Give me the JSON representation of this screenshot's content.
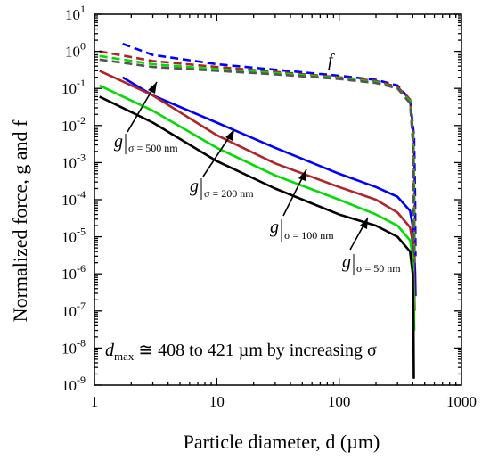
{
  "chart_data": {
    "type": "line",
    "xlabel": "Particle diameter, d (µm)",
    "ylabel": "Normalized force, g and f",
    "xscale": "log",
    "yscale": "log",
    "xlim": [
      1,
      1000
    ],
    "ylim": [
      1e-09,
      10
    ],
    "x_ticks": [
      "1",
      "10",
      "100",
      "1000"
    ],
    "y_ticks": [
      {
        "base": "10",
        "exp": "-9",
        "value": 1e-09
      },
      {
        "base": "10",
        "exp": "-8",
        "value": 1e-08
      },
      {
        "base": "10",
        "exp": "-7",
        "value": 1e-07
      },
      {
        "base": "10",
        "exp": "-6",
        "value": 1e-06
      },
      {
        "base": "10",
        "exp": "-5",
        "value": 1e-05
      },
      {
        "base": "10",
        "exp": "-4",
        "value": 0.0001
      },
      {
        "base": "10",
        "exp": "-3",
        "value": 0.001
      },
      {
        "base": "10",
        "exp": "-2",
        "value": 0.01
      },
      {
        "base": "10",
        "exp": "-1",
        "value": 0.1
      },
      {
        "base": "10",
        "exp": "0",
        "value": 1
      },
      {
        "base": "10",
        "exp": "1",
        "value": 10
      }
    ],
    "series": [
      {
        "style": "solid",
        "color": "#0000ff",
        "x": [
          1.7,
          3,
          10,
          30,
          100,
          200,
          300,
          380,
          405,
          418,
          421
        ],
        "y": [
          0.2,
          0.065,
          0.012,
          0.0025,
          0.0005,
          0.00022,
          0.00012,
          5e-05,
          1.5e-05,
          1e-06,
          2.5e-07
        ]
      },
      {
        "style": "solid",
        "color": "#b0242b",
        "x": [
          1.1,
          3,
          10,
          30,
          100,
          200,
          300,
          380,
          400,
          410,
          414
        ],
        "y": [
          0.3,
          0.065,
          0.0055,
          0.00095,
          0.00022,
          0.0001,
          4.5e-05,
          1.8e-05,
          7e-06,
          1e-06,
          1e-07
        ]
      },
      {
        "style": "solid",
        "color": "#00dd00",
        "x": [
          1.1,
          3,
          10,
          30,
          100,
          200,
          300,
          380,
          400,
          408,
          411
        ],
        "y": [
          0.12,
          0.025,
          0.0025,
          0.00045,
          0.0001,
          4e-05,
          2e-05,
          8e-06,
          3e-06,
          3e-07,
          3e-08
        ]
      },
      {
        "style": "solid",
        "color": "#000000",
        "x": [
          1.1,
          3,
          10,
          30,
          100,
          200,
          300,
          380,
          400,
          405,
          408
        ],
        "y": [
          0.06,
          0.012,
          0.0011,
          0.0002,
          4e-05,
          2e-05,
          1e-05,
          4e-06,
          1e-06,
          5e-08,
          1.5e-09
        ]
      },
      {
        "style": "dashed",
        "color": "#0000ff",
        "x": [
          1.7,
          3,
          10,
          30,
          100,
          200,
          300,
          380,
          410,
          418,
          421
        ],
        "y": [
          1.6,
          0.8,
          0.45,
          0.32,
          0.22,
          0.17,
          0.12,
          0.05,
          0.005,
          0.0001,
          3e-06
        ]
      },
      {
        "style": "dashed",
        "color": "#b0242b",
        "x": [
          1.1,
          3,
          10,
          30,
          100,
          200,
          300,
          380,
          405,
          412,
          414
        ],
        "y": [
          1.0,
          0.55,
          0.38,
          0.28,
          0.2,
          0.16,
          0.11,
          0.05,
          0.005,
          0.0001,
          2e-06
        ]
      },
      {
        "style": "dashed",
        "color": "#00dd00",
        "x": [
          1.1,
          3,
          10,
          30,
          100,
          200,
          300,
          380,
          403,
          409,
          411
        ],
        "y": [
          0.75,
          0.45,
          0.33,
          0.26,
          0.19,
          0.15,
          0.1,
          0.045,
          0.004,
          0.0001,
          2e-06
        ]
      },
      {
        "style": "dashed",
        "color": "#555555",
        "x": [
          1.1,
          3,
          10,
          30,
          100,
          200,
          300,
          380,
          400,
          406,
          408
        ],
        "y": [
          0.6,
          0.38,
          0.3,
          0.24,
          0.18,
          0.14,
          0.1,
          0.04,
          0.004,
          0.0001,
          2e-06
        ]
      }
    ],
    "annotations": {
      "f_label": "f",
      "g500": {
        "main": "g",
        "sub": "σ = 500 nm"
      },
      "g200": {
        "main": "g",
        "sub": "σ = 200 nm"
      },
      "g100": {
        "main": "g",
        "sub": "σ = 100 nm"
      },
      "g50": {
        "main": "g",
        "sub": "σ = 50 nm"
      },
      "dmax_symbol": "d",
      "dmax_sub": "max",
      "dmax_text": " ≅ 408 to 421 µm by increasing σ"
    }
  }
}
